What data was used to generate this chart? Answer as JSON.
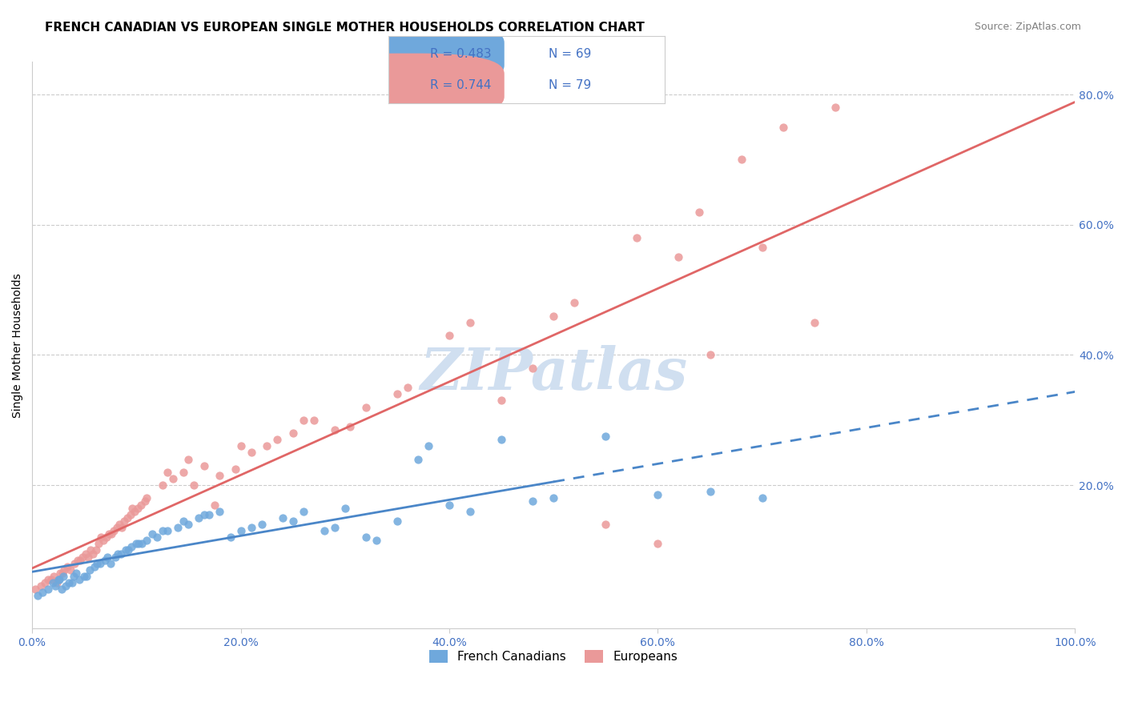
{
  "title": "FRENCH CANADIAN VS EUROPEAN SINGLE MOTHER HOUSEHOLDS CORRELATION CHART",
  "source": "Source: ZipAtlas.com",
  "ylabel": "Single Mother Households",
  "watermark": "ZIPatlas",
  "legend_r1": "R = 0.483",
  "legend_n1": "N = 69",
  "legend_r2": "R = 0.744",
  "legend_n2": "N = 79",
  "french_canadians_x": [
    0.5,
    1.0,
    1.5,
    2.0,
    2.5,
    2.8,
    3.0,
    3.2,
    3.5,
    4.0,
    4.5,
    5.0,
    5.5,
    6.0,
    6.5,
    7.0,
    7.5,
    8.0,
    8.5,
    9.0,
    9.5,
    10.0,
    10.5,
    11.0,
    12.0,
    13.0,
    14.0,
    15.0,
    16.0,
    17.0,
    18.0,
    20.0,
    22.0,
    24.0,
    26.0,
    28.0,
    30.0,
    32.0,
    35.0,
    38.0,
    40.0,
    45.0,
    48.0,
    50.0,
    55.0,
    60.0,
    65.0,
    70.0,
    2.2,
    2.6,
    3.8,
    4.2,
    5.2,
    6.2,
    7.2,
    8.2,
    9.2,
    10.2,
    11.5,
    12.5,
    14.5,
    16.5,
    19.0,
    21.0,
    25.0,
    29.0,
    33.0,
    37.0,
    42.0
  ],
  "french_canadians_y": [
    3.0,
    3.5,
    4.0,
    5.0,
    5.5,
    4.0,
    6.0,
    4.5,
    5.0,
    6.0,
    5.5,
    6.0,
    7.0,
    7.5,
    8.0,
    8.5,
    8.0,
    9.0,
    9.5,
    10.0,
    10.5,
    11.0,
    11.0,
    11.5,
    12.0,
    13.0,
    13.5,
    14.0,
    15.0,
    15.5,
    16.0,
    13.0,
    14.0,
    15.0,
    16.0,
    13.0,
    16.5,
    12.0,
    14.5,
    26.0,
    17.0,
    27.0,
    17.5,
    18.0,
    27.5,
    18.5,
    19.0,
    18.0,
    4.5,
    5.5,
    5.0,
    6.5,
    6.0,
    8.0,
    9.0,
    9.5,
    10.0,
    11.0,
    12.5,
    13.0,
    14.5,
    15.5,
    12.0,
    13.5,
    14.5,
    13.5,
    11.5,
    24.0,
    16.0
  ],
  "europeans_x": [
    0.3,
    0.8,
    1.2,
    1.8,
    2.1,
    2.4,
    2.7,
    3.1,
    3.4,
    3.7,
    4.1,
    4.4,
    4.8,
    5.1,
    5.4,
    5.8,
    6.1,
    6.4,
    6.8,
    7.1,
    7.4,
    7.8,
    8.1,
    8.4,
    8.8,
    9.1,
    9.4,
    9.8,
    10.1,
    10.4,
    11.0,
    12.5,
    13.5,
    14.5,
    15.5,
    16.5,
    18.0,
    19.5,
    21.0,
    22.5,
    25.0,
    27.0,
    29.0,
    32.0,
    35.0,
    40.0,
    45.0,
    50.0,
    55.0,
    60.0,
    62.0,
    65.0,
    70.0,
    75.0,
    1.5,
    2.9,
    4.6,
    5.6,
    6.6,
    7.6,
    8.6,
    9.6,
    10.8,
    13.0,
    15.0,
    17.5,
    20.0,
    23.5,
    26.0,
    30.5,
    36.0,
    42.0,
    48.0,
    52.0,
    58.0,
    64.0,
    68.0,
    72.0,
    77.0
  ],
  "europeans_y": [
    4.0,
    4.5,
    5.0,
    5.5,
    6.0,
    5.0,
    6.5,
    7.0,
    7.5,
    7.0,
    8.0,
    8.5,
    9.0,
    9.5,
    9.0,
    9.5,
    10.0,
    11.0,
    11.5,
    12.0,
    12.5,
    13.0,
    13.5,
    14.0,
    14.5,
    15.0,
    15.5,
    16.0,
    16.5,
    17.0,
    18.0,
    20.0,
    21.0,
    22.0,
    20.0,
    23.0,
    21.5,
    22.5,
    25.0,
    26.0,
    28.0,
    30.0,
    28.5,
    32.0,
    34.0,
    43.0,
    33.0,
    46.0,
    14.0,
    11.0,
    55.0,
    40.0,
    56.5,
    45.0,
    5.5,
    6.5,
    8.5,
    10.0,
    12.0,
    12.5,
    13.5,
    16.5,
    17.5,
    22.0,
    24.0,
    17.0,
    26.0,
    27.0,
    30.0,
    29.0,
    35.0,
    45.0,
    38.0,
    48.0,
    58.0,
    62.0,
    70.0,
    75.0,
    78.0
  ],
  "blue_color": "#6fa8dc",
  "pink_color": "#ea9999",
  "blue_line_color": "#4a86c8",
  "pink_line_color": "#e06666",
  "axis_color": "#4472c4",
  "grid_color": "#cccccc",
  "watermark_color": "#d0dff0",
  "background_color": "#ffffff",
  "title_fontsize": 11,
  "label_fontsize": 10,
  "tick_fontsize": 10
}
